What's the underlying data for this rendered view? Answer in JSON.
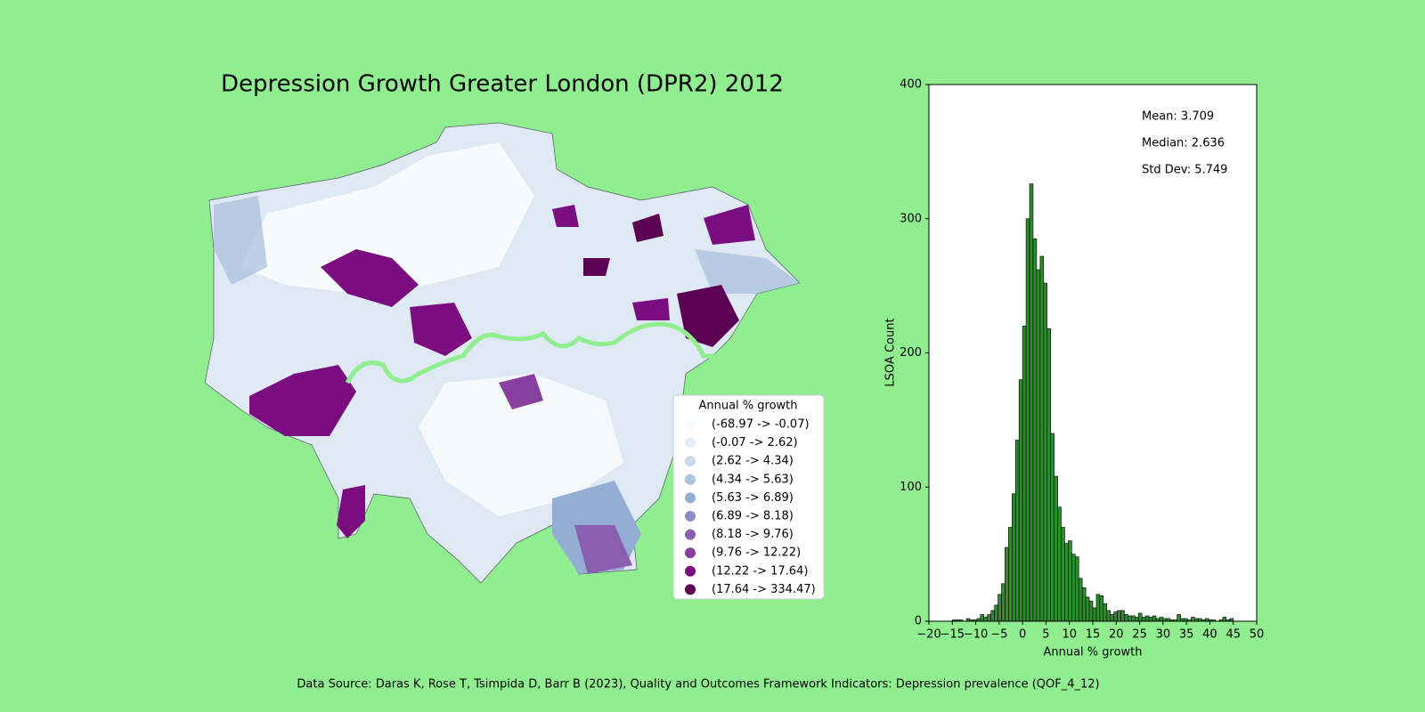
{
  "chart_data": [
    {
      "type": "choropleth",
      "title": "Depression Growth Greater London (DPR2) 2012",
      "legend_title": "Annual % growth",
      "legend": [
        {
          "label": "(-68.97 -> -0.07)",
          "color": "#f7fcfd"
        },
        {
          "label": "(-0.07 -> 2.62)",
          "color": "#e5eef6"
        },
        {
          "label": "(2.62 -> 4.34)",
          "color": "#c9d9ea"
        },
        {
          "label": "(4.34 -> 5.63)",
          "color": "#adc4de"
        },
        {
          "label": "(5.63 -> 6.89)",
          "color": "#94aed3"
        },
        {
          "label": "(6.89 -> 8.18)",
          "color": "#8c8dc4"
        },
        {
          "label": "(8.18 -> 9.76)",
          "color": "#8a5fb0"
        },
        {
          "label": "(9.76 -> 12.22)",
          "color": "#87409d"
        },
        {
          "label": "(12.22 -> 17.64)",
          "color": "#7a0e80"
        },
        {
          "label": "(17.64 -> 334.47)",
          "color": "#5b0052"
        }
      ]
    },
    {
      "type": "histogram",
      "xlabel": "Annual % growth",
      "ylabel": "LSOA Count",
      "color": "#2e8b2e",
      "annotations": [
        "Mean: 3.709",
        "Median: 2.636",
        "Std Dev: 5.749"
      ],
      "bins": [
        -15,
        -14.25,
        -13.5,
        -12.75,
        -12,
        -11.25,
        -10.5,
        -9.75,
        -9,
        -8.25,
        -7.5,
        -6.75,
        -6,
        -5.25,
        -4.5,
        -3.75,
        -3,
        -2.25,
        -1.5,
        -0.75,
        0,
        0.75,
        1.5,
        2.25,
        3,
        3.75,
        4.5,
        5.25,
        6,
        6.75,
        7.5,
        8.25,
        9,
        9.75,
        10.5,
        11.25,
        12,
        12.75,
        13.5,
        14.25,
        15,
        15.75,
        16.5,
        17.25,
        18,
        18.75,
        19.5,
        20.25,
        21,
        21.75,
        22.5,
        23.25,
        24,
        24.75,
        25.5,
        26.25,
        27,
        27.75,
        28.5,
        29.25,
        30,
        30.75,
        31.5,
        32.25,
        33,
        33.75,
        34.5,
        35.25,
        36,
        36.75,
        37.5,
        38.25,
        39,
        39.75,
        40.5,
        41.25,
        42,
        42.75,
        43.5,
        44.25,
        45
      ],
      "counts": [
        1,
        1,
        1,
        0,
        2,
        1,
        1,
        2,
        5,
        3,
        5,
        8,
        12,
        20,
        28,
        55,
        70,
        95,
        135,
        180,
        220,
        300,
        326,
        285,
        262,
        272,
        252,
        218,
        140,
        108,
        85,
        70,
        58,
        60,
        50,
        48,
        32,
        25,
        18,
        15,
        10,
        20,
        19,
        13,
        8,
        5,
        7,
        8,
        8,
        5,
        4,
        4,
        3,
        6,
        3,
        4,
        3,
        4,
        2,
        3,
        2,
        2,
        1,
        1,
        5,
        2,
        2,
        1,
        3,
        2,
        2,
        1,
        2,
        1,
        1,
        0,
        1,
        3,
        1,
        2
      ],
      "xlim": [
        -20,
        50
      ],
      "ylim": [
        0,
        400
      ],
      "xticks": [
        {
          "value": -20,
          "label": "−20"
        },
        {
          "value": -15,
          "label": "−15"
        },
        {
          "value": -10,
          "label": "−10"
        },
        {
          "value": -5,
          "label": "−5"
        },
        0,
        5,
        10,
        15,
        20,
        25,
        30,
        35,
        40,
        45,
        50
      ],
      "yticks": [
        0,
        100,
        200,
        300,
        400
      ]
    }
  ],
  "source": "Data Source: Daras K, Rose T, Tsimpida D, Barr B (2023), Quality and Outcomes Framework Indicators: Depression prevalence (QOF_4_12)"
}
